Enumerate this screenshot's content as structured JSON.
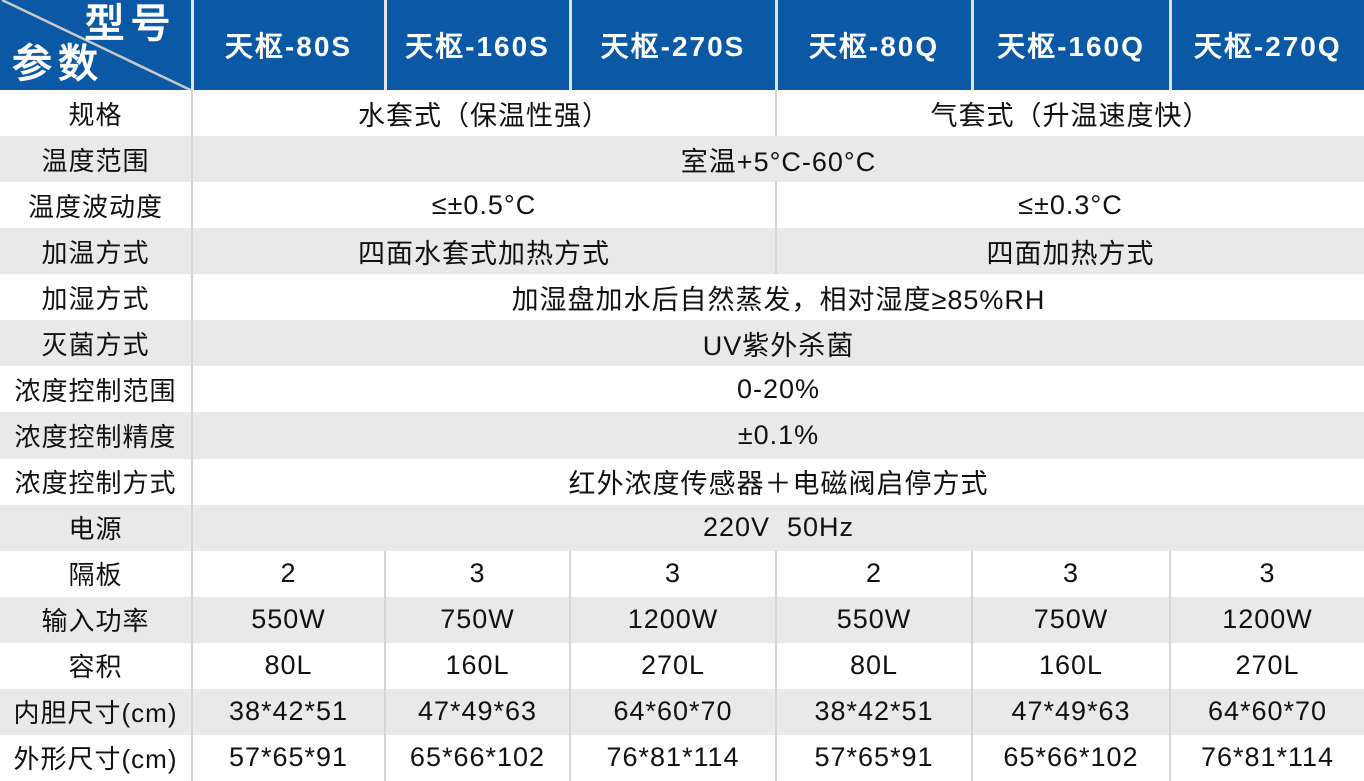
{
  "table": {
    "corner": {
      "top_label": "型号",
      "bottom_label": "参数"
    },
    "models": [
      "天枢-80S",
      "天枢-160S",
      "天枢-270S",
      "天枢-80Q",
      "天枢-160Q",
      "天枢-270Q"
    ],
    "rows": [
      {
        "label": "规格",
        "cells": [
          {
            "span": 3,
            "text": "水套式（保温性强）"
          },
          {
            "span": 3,
            "text": "气套式（升温速度快）"
          }
        ]
      },
      {
        "label": "温度范围",
        "cells": [
          {
            "span": 6,
            "text": "室温+5°C-60°C"
          }
        ]
      },
      {
        "label": "温度波动度",
        "cells": [
          {
            "span": 3,
            "text": "≤±0.5°C"
          },
          {
            "span": 3,
            "text": "≤±0.3°C"
          }
        ]
      },
      {
        "label": "加温方式",
        "cells": [
          {
            "span": 3,
            "text": "四面水套式加热方式"
          },
          {
            "span": 3,
            "text": "四面加热方式"
          }
        ]
      },
      {
        "label": "加湿方式",
        "cells": [
          {
            "span": 6,
            "text": "加湿盘加水后自然蒸发，相对湿度≥85%RH"
          }
        ]
      },
      {
        "label": "灭菌方式",
        "cells": [
          {
            "span": 6,
            "text": "UV紫外杀菌"
          }
        ]
      },
      {
        "label": "浓度控制范围",
        "cells": [
          {
            "span": 6,
            "text": "0-20%"
          }
        ]
      },
      {
        "label": "浓度控制精度",
        "cells": [
          {
            "span": 6,
            "text": "±0.1%"
          }
        ]
      },
      {
        "label": "浓度控制方式",
        "cells": [
          {
            "span": 6,
            "text": "红外浓度传感器＋电磁阀启停方式"
          }
        ]
      },
      {
        "label": "电源",
        "cells": [
          {
            "span": 6,
            "text": "220V  50Hz"
          }
        ]
      },
      {
        "label": "隔板",
        "cells": [
          {
            "span": 1,
            "text": "2"
          },
          {
            "span": 1,
            "text": "3"
          },
          {
            "span": 1,
            "text": "3"
          },
          {
            "span": 1,
            "text": "2"
          },
          {
            "span": 1,
            "text": "3"
          },
          {
            "span": 1,
            "text": "3"
          }
        ]
      },
      {
        "label": "输入功率",
        "cells": [
          {
            "span": 1,
            "text": "550W"
          },
          {
            "span": 1,
            "text": "750W"
          },
          {
            "span": 1,
            "text": "1200W"
          },
          {
            "span": 1,
            "text": "550W"
          },
          {
            "span": 1,
            "text": "750W"
          },
          {
            "span": 1,
            "text": "1200W"
          }
        ]
      },
      {
        "label": "容积",
        "cells": [
          {
            "span": 1,
            "text": "80L"
          },
          {
            "span": 1,
            "text": "160L"
          },
          {
            "span": 1,
            "text": "270L"
          },
          {
            "span": 1,
            "text": "80L"
          },
          {
            "span": 1,
            "text": "160L"
          },
          {
            "span": 1,
            "text": "270L"
          }
        ]
      },
      {
        "label": "内胆尺寸(cm)",
        "cells": [
          {
            "span": 1,
            "text": "38*42*51"
          },
          {
            "span": 1,
            "text": "47*49*63"
          },
          {
            "span": 1,
            "text": "64*60*70"
          },
          {
            "span": 1,
            "text": "38*42*51"
          },
          {
            "span": 1,
            "text": "47*49*63"
          },
          {
            "span": 1,
            "text": "64*60*70"
          }
        ]
      },
      {
        "label": "外形尺寸(cm)",
        "cells": [
          {
            "span": 1,
            "text": "57*65*91"
          },
          {
            "span": 1,
            "text": "65*66*102"
          },
          {
            "span": 1,
            "text": "76*81*114"
          },
          {
            "span": 1,
            "text": "57*65*91"
          },
          {
            "span": 1,
            "text": "65*66*102"
          },
          {
            "span": 1,
            "text": "76*81*114"
          }
        ]
      }
    ]
  },
  "colors": {
    "header_bg": "#0B59A5",
    "header_text": "#FFFFFF",
    "row_alt_bg": "#E9E9E9",
    "row_bg": "#FFFFFF",
    "divider": "#D5D5D5",
    "body_text": "#111111"
  }
}
